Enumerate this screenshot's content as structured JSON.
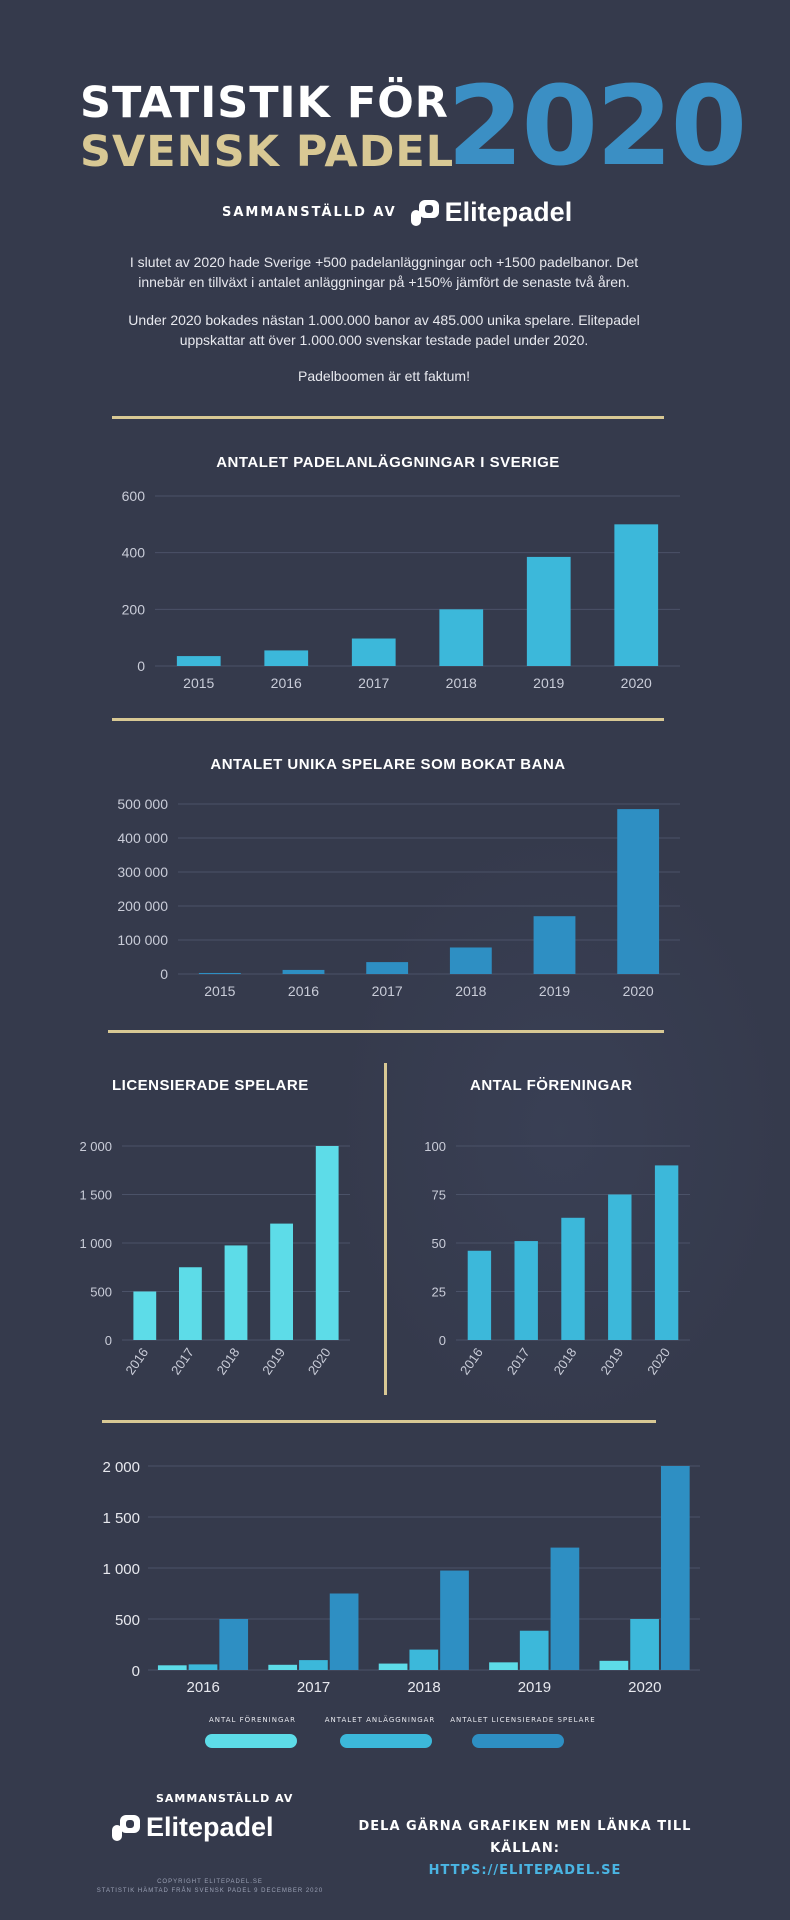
{
  "header": {
    "title_line1": "STATISTIK FÖR",
    "title_line2": "SVENSK PADEL",
    "year": "2020",
    "compiled_by": "SAMMANSTÄLLD AV",
    "brand": "Elitepadel"
  },
  "intro": {
    "p1": "I slutet av 2020 hade Sverige +500 padelanläggningar och +1500 padelbanor. Det innebär en tillväxt i antalet anläggningar på  +150% jämfört de senaste två åren.",
    "p2": "Under 2020 bokades nästan 1.000.000 banor av 485.000 unika spelare. Elitepadel uppskattar att över 1.000.000 svenskar testade padel under 2020.",
    "p3": "Padelboomen är ett faktum!"
  },
  "colors": {
    "background": "#353a4c",
    "gold": "#d8c894",
    "blue": "#3b8fc4",
    "light_cyan": "#5ddce8",
    "mid_blue": "#3cb8da",
    "dark_blue": "#2e8fc3"
  },
  "chart_data": [
    {
      "id": "facilities",
      "type": "bar",
      "title": "ANTALET PADELANLÄGGNINGAR I SVERIGE",
      "categories": [
        "2015",
        "2016",
        "2017",
        "2018",
        "2019",
        "2020"
      ],
      "values": [
        35,
        55,
        97,
        200,
        385,
        500
      ],
      "ylim": [
        0,
        600
      ],
      "yticks": [
        0,
        200,
        400,
        600
      ],
      "ytick_labels": [
        "0",
        "200",
        "400",
        "600"
      ],
      "color": "#3cb8da",
      "grid": true
    },
    {
      "id": "players",
      "type": "bar",
      "title": "ANTALET UNIKA SPELARE SOM BOKAT BANA",
      "categories": [
        "2015",
        "2016",
        "2017",
        "2018",
        "2019",
        "2020"
      ],
      "values": [
        3000,
        12000,
        35000,
        78000,
        170000,
        485000
      ],
      "ylim": [
        0,
        500000
      ],
      "yticks": [
        0,
        100000,
        200000,
        300000,
        400000,
        500000
      ],
      "ytick_labels": [
        "0",
        "100 000",
        "200 000",
        "300 000",
        "400 000",
        "500 000"
      ],
      "color": "#2e8fc3",
      "grid": true
    },
    {
      "id": "licensed",
      "type": "bar",
      "title": "LICENSIERADE SPELARE",
      "categories": [
        "2016",
        "2017",
        "2018",
        "2019",
        "2020"
      ],
      "values": [
        500,
        750,
        975,
        1200,
        2000
      ],
      "ylim": [
        0,
        2000
      ],
      "yticks": [
        0,
        500,
        1000,
        1500,
        2000
      ],
      "ytick_labels": [
        "0",
        "500",
        "1 000",
        "1 500",
        "2 000"
      ],
      "color": "#5ddce8",
      "grid": true
    },
    {
      "id": "associations",
      "type": "bar",
      "title": "ANTAL FÖRENINGAR",
      "categories": [
        "2016",
        "2017",
        "2018",
        "2019",
        "2020"
      ],
      "values": [
        46,
        51,
        63,
        75,
        90
      ],
      "ylim": [
        0,
        100
      ],
      "yticks": [
        0,
        25,
        50,
        75,
        100
      ],
      "ytick_labels": [
        "0",
        "25",
        "50",
        "75",
        "100"
      ],
      "color": "#3cb8da",
      "grid": true
    },
    {
      "id": "combined",
      "type": "bar",
      "title": "",
      "categories": [
        "2016",
        "2017",
        "2018",
        "2019",
        "2020"
      ],
      "series": [
        {
          "name": "ANTAL FÖRENINGAR",
          "values": [
            46,
            51,
            63,
            75,
            90
          ],
          "color": "#5ddce8"
        },
        {
          "name": "ANTALET ANLÄGGNINGAR",
          "values": [
            55,
            97,
            200,
            385,
            500
          ],
          "color": "#3cb8da"
        },
        {
          "name": "ANTALET LICENSIERADE SPELARE",
          "values": [
            500,
            750,
            975,
            1200,
            2000
          ],
          "color": "#2e8fc3"
        }
      ],
      "ylim": [
        0,
        2000
      ],
      "yticks": [
        0,
        500,
        1000,
        1500,
        2000
      ],
      "ytick_labels": [
        "0",
        "500",
        "1 000",
        "1 500",
        "2 000"
      ],
      "legend": "bottom",
      "grid": true
    }
  ],
  "footer": {
    "compiled_by": "SAMMANSTÄLLD AV",
    "brand": "Elitepadel",
    "copyright_line1": "COPYRIGHT ELITEPADEL.SE",
    "copyright_line2": "STATISTIK HÄMTAD FRÅN SVENSK PADEL 9 DECEMBER 2020",
    "share_text": "DELA GÄRNA GRAFIKEN MEN LÄNKA TILL KÄLLAN:",
    "share_link": "HTTPS://ELITEPADEL.SE"
  }
}
